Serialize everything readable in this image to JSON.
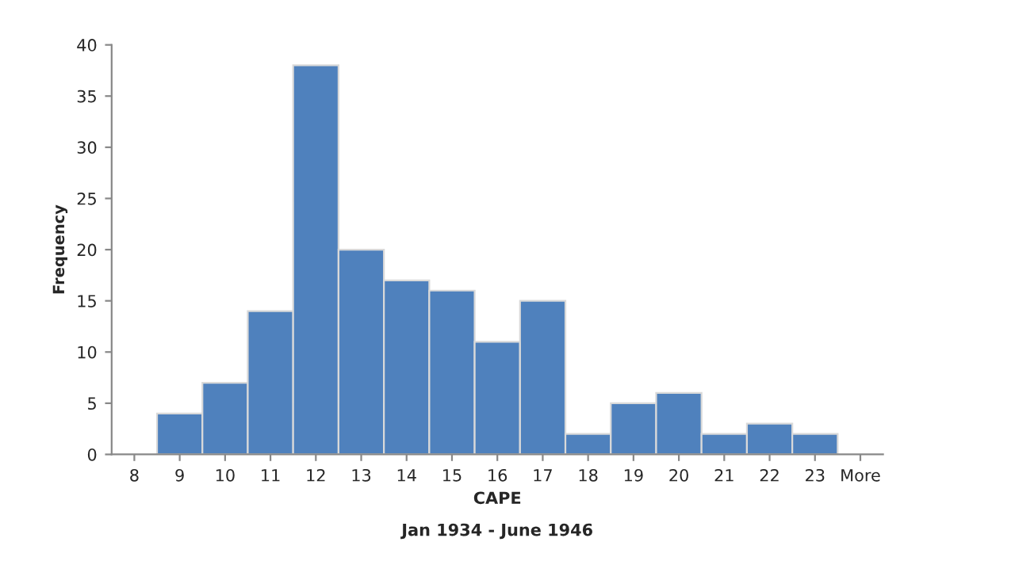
{
  "chart_data": {
    "type": "bar",
    "xlabel": "CAPE",
    "ylabel": "Frequency",
    "annotations": [
      "Jan 1934 - June 1946"
    ],
    "categories": [
      "8",
      "9",
      "10",
      "11",
      "12",
      "13",
      "14",
      "15",
      "16",
      "17",
      "18",
      "19",
      "20",
      "21",
      "22",
      "23",
      "More"
    ],
    "values": [
      0,
      4,
      7,
      14,
      38,
      20,
      17,
      16,
      11,
      15,
      2,
      5,
      6,
      2,
      3,
      2,
      0
    ],
    "color": "#4f81bd",
    "ylim": [
      0,
      40
    ],
    "yticks": [
      0,
      5,
      10,
      15,
      20,
      25,
      30,
      35,
      40
    ],
    "grid": false
  }
}
